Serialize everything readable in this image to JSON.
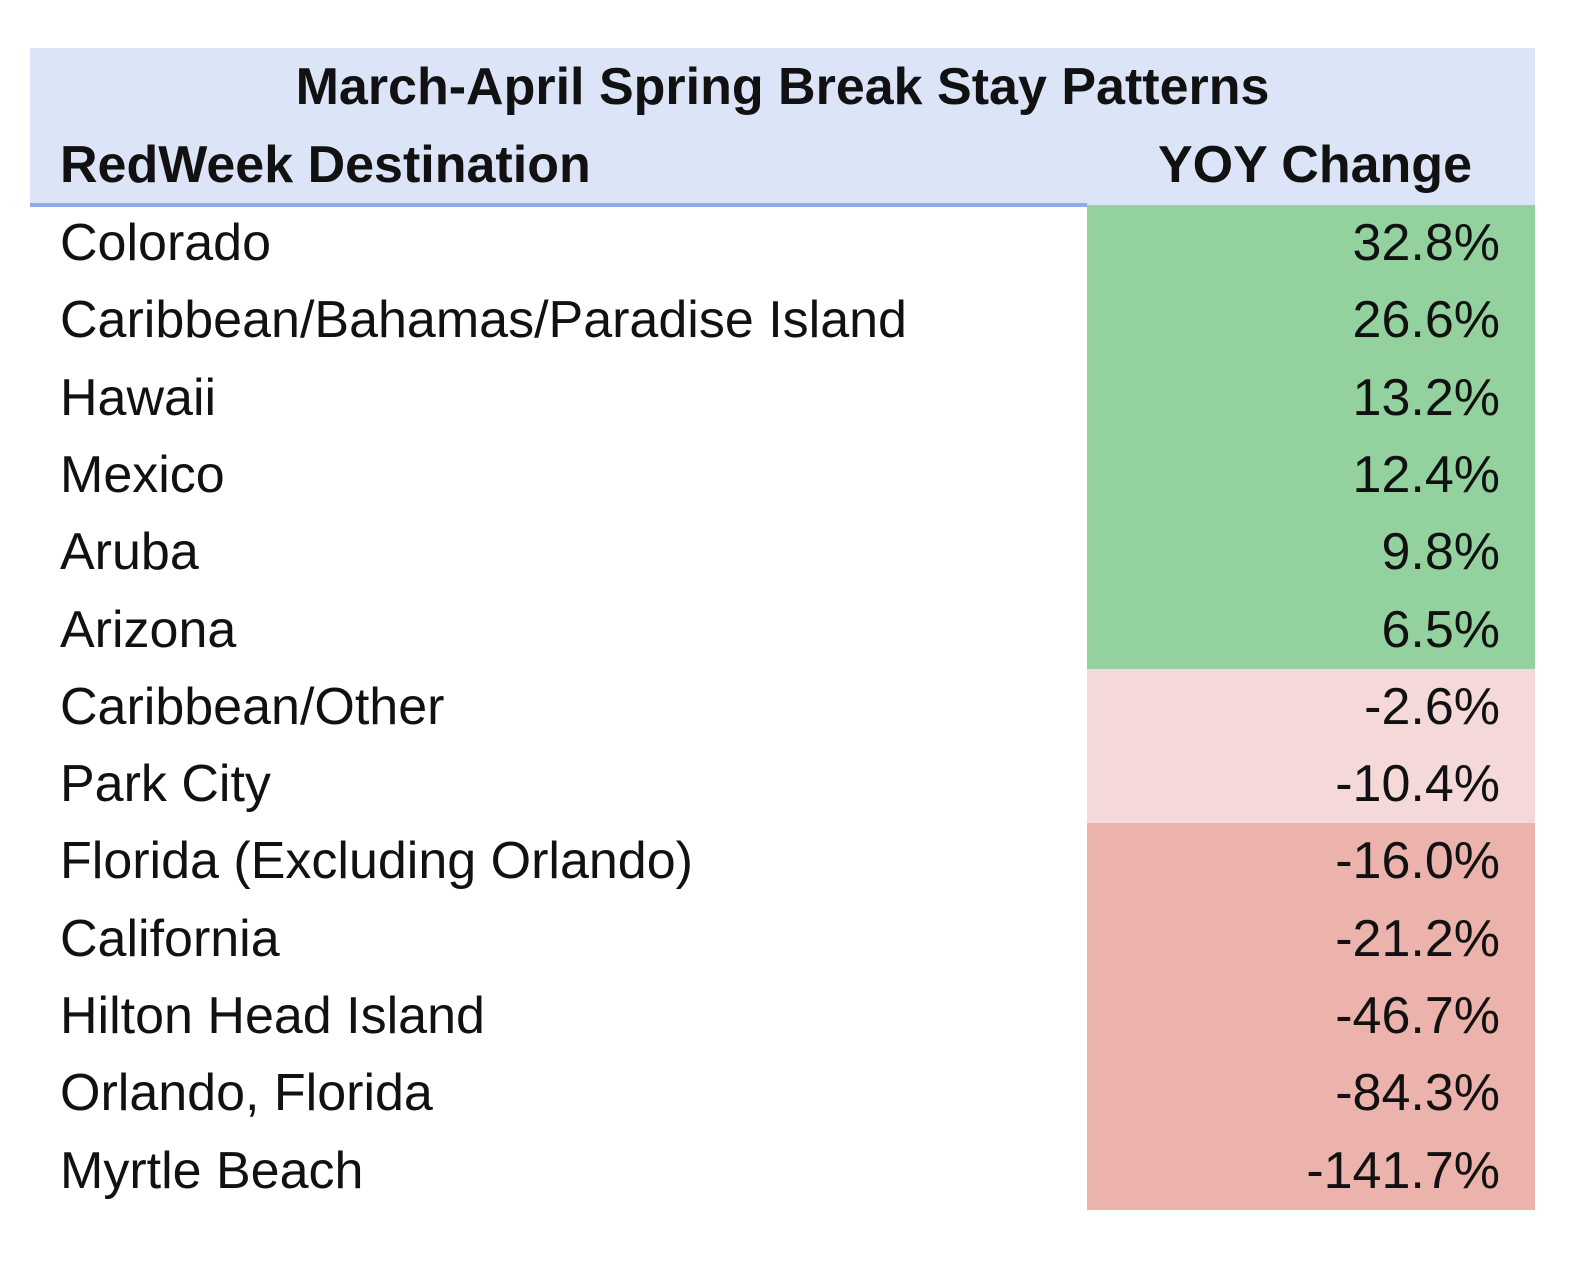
{
  "table": {
    "title": "March-April Spring Break Stay Patterns",
    "header": [
      "RedWeek Destination",
      "YOY Change"
    ],
    "rows": [
      {
        "destination": "Colorado",
        "change": "32.8%",
        "fill": "#93d29f"
      },
      {
        "destination": "Caribbean/Bahamas/Paradise Island",
        "change": "26.6%",
        "fill": "#93d29f"
      },
      {
        "destination": "Hawaii",
        "change": "13.2%",
        "fill": "#93d29f"
      },
      {
        "destination": "Mexico",
        "change": "12.4%",
        "fill": "#93d29f"
      },
      {
        "destination": "Aruba",
        "change": "9.8%",
        "fill": "#93d29f"
      },
      {
        "destination": "Arizona",
        "change": "6.5%",
        "fill": "#93d29f"
      },
      {
        "destination": "Caribbean/Other",
        "change": "-2.6%",
        "fill": "#f5d8d8"
      },
      {
        "destination": "Park City",
        "change": "-10.4%",
        "fill": "#f5d8d8"
      },
      {
        "destination": "Florida (Excluding Orlando)",
        "change": "-16.0%",
        "fill": "#ecb3ad"
      },
      {
        "destination": "California",
        "change": "-21.2%",
        "fill": "#ecb3ad"
      },
      {
        "destination": "Hilton Head Island",
        "change": "-46.7%",
        "fill": "#ecb3ad"
      },
      {
        "destination": "Orlando, Florida",
        "change": "-84.3%",
        "fill": "#ecb3ad"
      },
      {
        "destination": "Myrtle Beach",
        "change": "-141.7%",
        "fill": "#ecb3ad"
      }
    ]
  }
}
